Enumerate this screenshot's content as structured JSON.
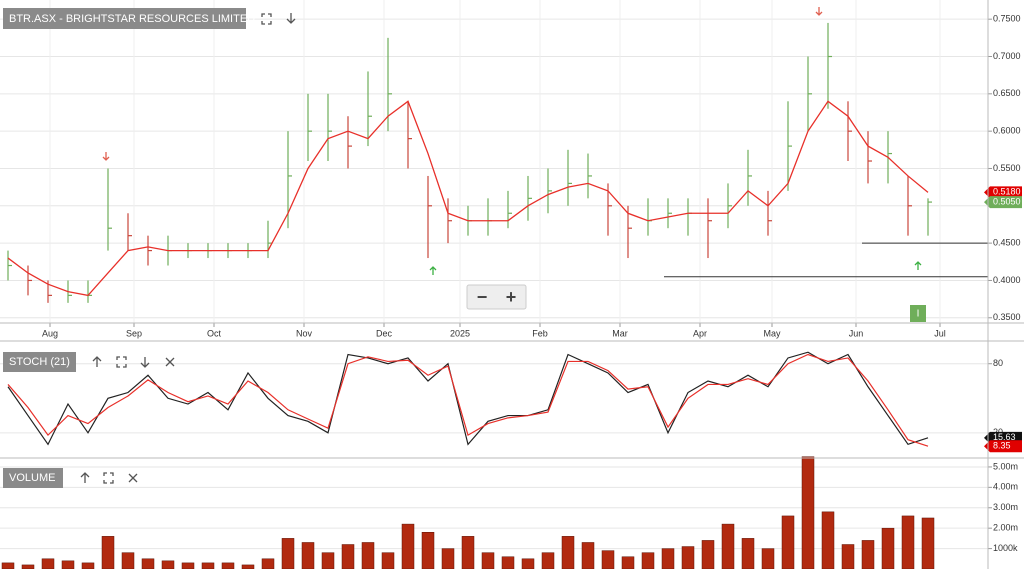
{
  "chart_data": [
    {
      "type": "ohlc",
      "title": "BTR.ASX - BRIGHTSTAR RESOURCES LIMITED",
      "x": [
        2,
        7,
        12,
        17,
        22,
        27,
        32,
        37,
        42,
        47,
        52,
        57,
        62,
        67,
        72,
        77,
        82,
        87,
        92,
        97,
        102,
        107,
        112,
        117,
        122,
        127,
        132,
        137,
        142,
        147,
        152,
        157,
        162,
        167,
        172,
        177,
        182,
        187,
        192,
        197,
        202,
        207,
        212,
        217,
        222,
        227,
        232
      ],
      "xlim": [
        0,
        247
      ],
      "xticks": [
        {
          "value": 12.5,
          "label": "Aug"
        },
        {
          "value": 33.5,
          "label": "Sep"
        },
        {
          "value": 53.5,
          "label": "Oct"
        },
        {
          "value": 76,
          "label": "Nov"
        },
        {
          "value": 96,
          "label": "Dec"
        },
        {
          "value": 115,
          "label": "2025"
        },
        {
          "value": 135,
          "label": "Feb"
        },
        {
          "value": 155,
          "label": "Mar"
        },
        {
          "value": 175,
          "label": "Apr"
        },
        {
          "value": 193,
          "label": "May"
        },
        {
          "value": 214,
          "label": "Jun"
        },
        {
          "value": 235,
          "label": "Jul"
        }
      ],
      "ylim": [
        0.343,
        0.769
      ],
      "yticks": [
        {
          "value": 0.35,
          "label": "0.3500"
        },
        {
          "value": 0.4,
          "label": "0.4000"
        },
        {
          "value": 0.45,
          "label": "0.4500"
        },
        {
          "value": 0.5,
          "label": "0.5000"
        },
        {
          "value": 0.55,
          "label": "0.5500"
        },
        {
          "value": 0.6,
          "label": "0.6000"
        },
        {
          "value": 0.65,
          "label": "0.6500"
        },
        {
          "value": 0.7,
          "label": "0.7000"
        },
        {
          "value": 0.75,
          "label": "0.7500"
        }
      ],
      "grid": true,
      "high": [
        0.44,
        0.42,
        0.4,
        0.4,
        0.4,
        0.55,
        0.49,
        0.46,
        0.46,
        0.45,
        0.45,
        0.45,
        0.45,
        0.48,
        0.6,
        0.65,
        0.65,
        0.62,
        0.68,
        0.725,
        0.64,
        0.54,
        0.51,
        0.5,
        0.51,
        0.52,
        0.54,
        0.55,
        0.575,
        0.57,
        0.53,
        0.5,
        0.51,
        0.51,
        0.51,
        0.51,
        0.53,
        0.575,
        0.52,
        0.64,
        0.7,
        0.745,
        0.64,
        0.6,
        0.6,
        0.54,
        0.51
      ],
      "low": [
        0.4,
        0.38,
        0.37,
        0.37,
        0.37,
        0.44,
        0.44,
        0.42,
        0.42,
        0.43,
        0.43,
        0.43,
        0.43,
        0.43,
        0.47,
        0.56,
        0.56,
        0.55,
        0.58,
        0.6,
        0.55,
        0.43,
        0.45,
        0.46,
        0.46,
        0.47,
        0.48,
        0.49,
        0.5,
        0.51,
        0.46,
        0.43,
        0.46,
        0.47,
        0.46,
        0.43,
        0.47,
        0.5,
        0.46,
        0.52,
        0.6,
        0.63,
        0.56,
        0.53,
        0.53,
        0.46,
        0.46
      ],
      "close": [
        0.42,
        0.4,
        0.38,
        0.38,
        0.38,
        0.47,
        0.46,
        0.44,
        0.44,
        0.44,
        0.44,
        0.44,
        0.44,
        0.45,
        0.54,
        0.6,
        0.6,
        0.58,
        0.62,
        0.65,
        0.59,
        0.5,
        0.48,
        0.48,
        0.48,
        0.49,
        0.51,
        0.52,
        0.53,
        0.54,
        0.5,
        0.47,
        0.48,
        0.49,
        0.49,
        0.48,
        0.5,
        0.54,
        0.48,
        0.58,
        0.65,
        0.7,
        0.6,
        0.56,
        0.57,
        0.5,
        0.505
      ],
      "up_color": "#6fae5a",
      "down_color": "#c9463b",
      "overlay_color": "#e8302a",
      "overlay_values": [
        0.43,
        0.41,
        0.395,
        0.385,
        0.38,
        0.41,
        0.44,
        0.445,
        0.44,
        0.44,
        0.44,
        0.44,
        0.44,
        0.44,
        0.49,
        0.55,
        0.59,
        0.6,
        0.59,
        0.62,
        0.64,
        0.57,
        0.49,
        0.48,
        0.48,
        0.48,
        0.5,
        0.515,
        0.525,
        0.53,
        0.52,
        0.49,
        0.48,
        0.485,
        0.49,
        0.49,
        0.49,
        0.52,
        0.5,
        0.53,
        0.6,
        0.64,
        0.62,
        0.58,
        0.565,
        0.54,
        0.518
      ],
      "last_labels": [
        {
          "value": 0.518,
          "label": "0.5180",
          "color": "#e00000"
        },
        {
          "value": 0.505,
          "label": "0.5050",
          "color": "#6fae5a"
        }
      ],
      "hlines": [
        {
          "value": 0.45,
          "x0": 215.5
        },
        {
          "value": 0.405,
          "x0": 166
        }
      ]
    },
    {
      "type": "line",
      "title": "STOCH (21)",
      "ylim": [
        -1,
        98
      ],
      "yticks": [
        20,
        80
      ],
      "grid": true,
      "series": [
        {
          "color": "#222222",
          "values": [
            60,
            35,
            10,
            45,
            20,
            50,
            55,
            70,
            50,
            45,
            55,
            40,
            72,
            50,
            35,
            30,
            20,
            88,
            85,
            80,
            85,
            65,
            80,
            10,
            30,
            35,
            35,
            40,
            88,
            80,
            72,
            55,
            62,
            20,
            55,
            65,
            60,
            70,
            60,
            85,
            90,
            80,
            88,
            60,
            35,
            10,
            15.63
          ]
        },
        {
          "color": "#e8302a",
          "values": [
            62,
            42,
            18,
            35,
            28,
            42,
            52,
            66,
            55,
            47,
            52,
            45,
            65,
            55,
            40,
            32,
            24,
            80,
            86,
            82,
            83,
            70,
            78,
            18,
            28,
            33,
            35,
            38,
            82,
            82,
            74,
            58,
            60,
            25,
            50,
            62,
            62,
            67,
            62,
            80,
            88,
            82,
            85,
            65,
            40,
            14,
            8.35
          ]
        }
      ],
      "last_labels": [
        {
          "value": 15.63,
          "color": "#111111"
        },
        {
          "value": 8.35,
          "color": "#e00000"
        }
      ]
    },
    {
      "type": "bar",
      "title": "VOLUME",
      "color": "#b22a10",
      "ylim": [
        0,
        5340000
      ],
      "yticks": [
        {
          "value": 1000000,
          "label": "1000k"
        },
        {
          "value": 2000000,
          "label": "2.00m"
        },
        {
          "value": 3000000,
          "label": "3.00m"
        },
        {
          "value": 4000000,
          "label": "4.00m"
        },
        {
          "value": 5000000,
          "label": "5.00m"
        }
      ],
      "grid": true,
      "values": [
        300000,
        200000,
        500000,
        400000,
        300000,
        1600000,
        800000,
        500000,
        400000,
        300000,
        300000,
        300000,
        200000,
        500000,
        1500000,
        1300000,
        800000,
        1200000,
        1300000,
        800000,
        2200000,
        1800000,
        1000000,
        1600000,
        800000,
        600000,
        500000,
        800000,
        1600000,
        1300000,
        900000,
        600000,
        800000,
        1000000,
        1100000,
        1400000,
        2200000,
        1500000,
        1000000,
        2600000,
        5500000,
        2800000,
        1200000,
        1400000,
        2000000,
        2600000,
        2500000
      ]
    }
  ],
  "controls": {
    "zoom_out": "−",
    "zoom_in": "+",
    "badge": "I"
  }
}
